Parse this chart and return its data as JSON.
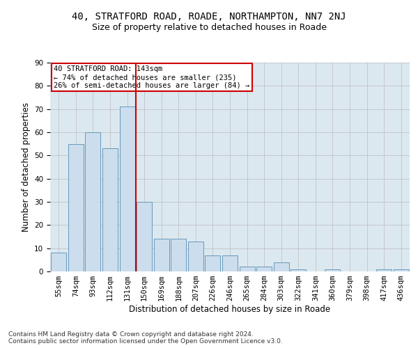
{
  "title1": "40, STRATFORD ROAD, ROADE, NORTHAMPTON, NN7 2NJ",
  "title2": "Size of property relative to detached houses in Roade",
  "xlabel": "Distribution of detached houses by size in Roade",
  "ylabel": "Number of detached properties",
  "categories": [
    "55sqm",
    "74sqm",
    "93sqm",
    "112sqm",
    "131sqm",
    "150sqm",
    "169sqm",
    "188sqm",
    "207sqm",
    "226sqm",
    "246sqm",
    "265sqm",
    "284sqm",
    "303sqm",
    "322sqm",
    "341sqm",
    "360sqm",
    "379sqm",
    "398sqm",
    "417sqm",
    "436sqm"
  ],
  "values": [
    8,
    55,
    60,
    53,
    71,
    30,
    14,
    14,
    13,
    7,
    7,
    2,
    2,
    4,
    1,
    0,
    1,
    0,
    0,
    1,
    1
  ],
  "bar_color": "#ccdded",
  "bar_edge_color": "#6699bb",
  "vline_x_index": 4.5,
  "vline_color": "#cc0000",
  "annotation_line1": "40 STRATFORD ROAD: 143sqm",
  "annotation_line2": "← 74% of detached houses are smaller (235)",
  "annotation_line3": "26% of semi-detached houses are larger (84) →",
  "annotation_box_color": "#ffffff",
  "annotation_box_edge_color": "#cc0000",
  "ylim": [
    0,
    90
  ],
  "yticks": [
    0,
    10,
    20,
    30,
    40,
    50,
    60,
    70,
    80,
    90
  ],
  "footer": "Contains HM Land Registry data © Crown copyright and database right 2024.\nContains public sector information licensed under the Open Government Licence v3.0.",
  "background_color": "#dce8f0",
  "plot_background_color": "#dce8f0",
  "title1_fontsize": 10,
  "title2_fontsize": 9,
  "xlabel_fontsize": 8.5,
  "ylabel_fontsize": 8.5,
  "footer_fontsize": 6.5,
  "tick_fontsize": 7.5,
  "annot_fontsize": 7.5
}
